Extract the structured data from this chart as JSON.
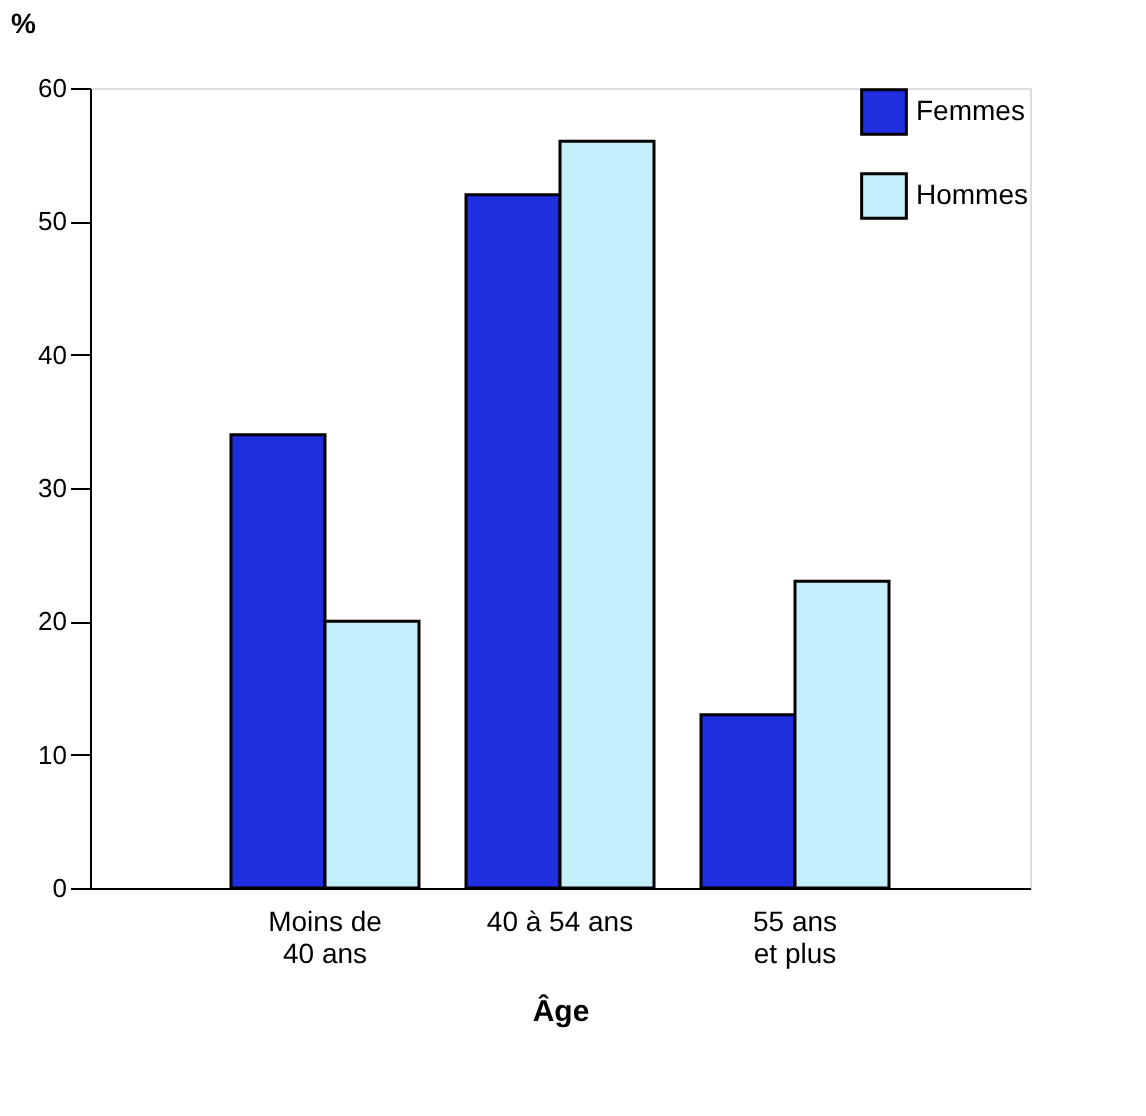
{
  "chart_data": {
    "type": "bar",
    "categories": [
      "Moins de\n40 ans",
      "40 à 54 ans",
      "55 ans\net plus"
    ],
    "series": [
      {
        "name": "Femmes",
        "color": "#1f2fe0",
        "values": [
          34,
          52,
          13
        ]
      },
      {
        "name": "Hommes",
        "color": "#c2effa",
        "values": [
          20,
          56,
          23
        ]
      }
    ],
    "xlabel": "Âge",
    "ylabel": "%",
    "ylim": [
      0,
      60
    ],
    "yticks": [
      0,
      10,
      20,
      30,
      40,
      50,
      60
    ],
    "grid": false,
    "legend": "top right"
  }
}
